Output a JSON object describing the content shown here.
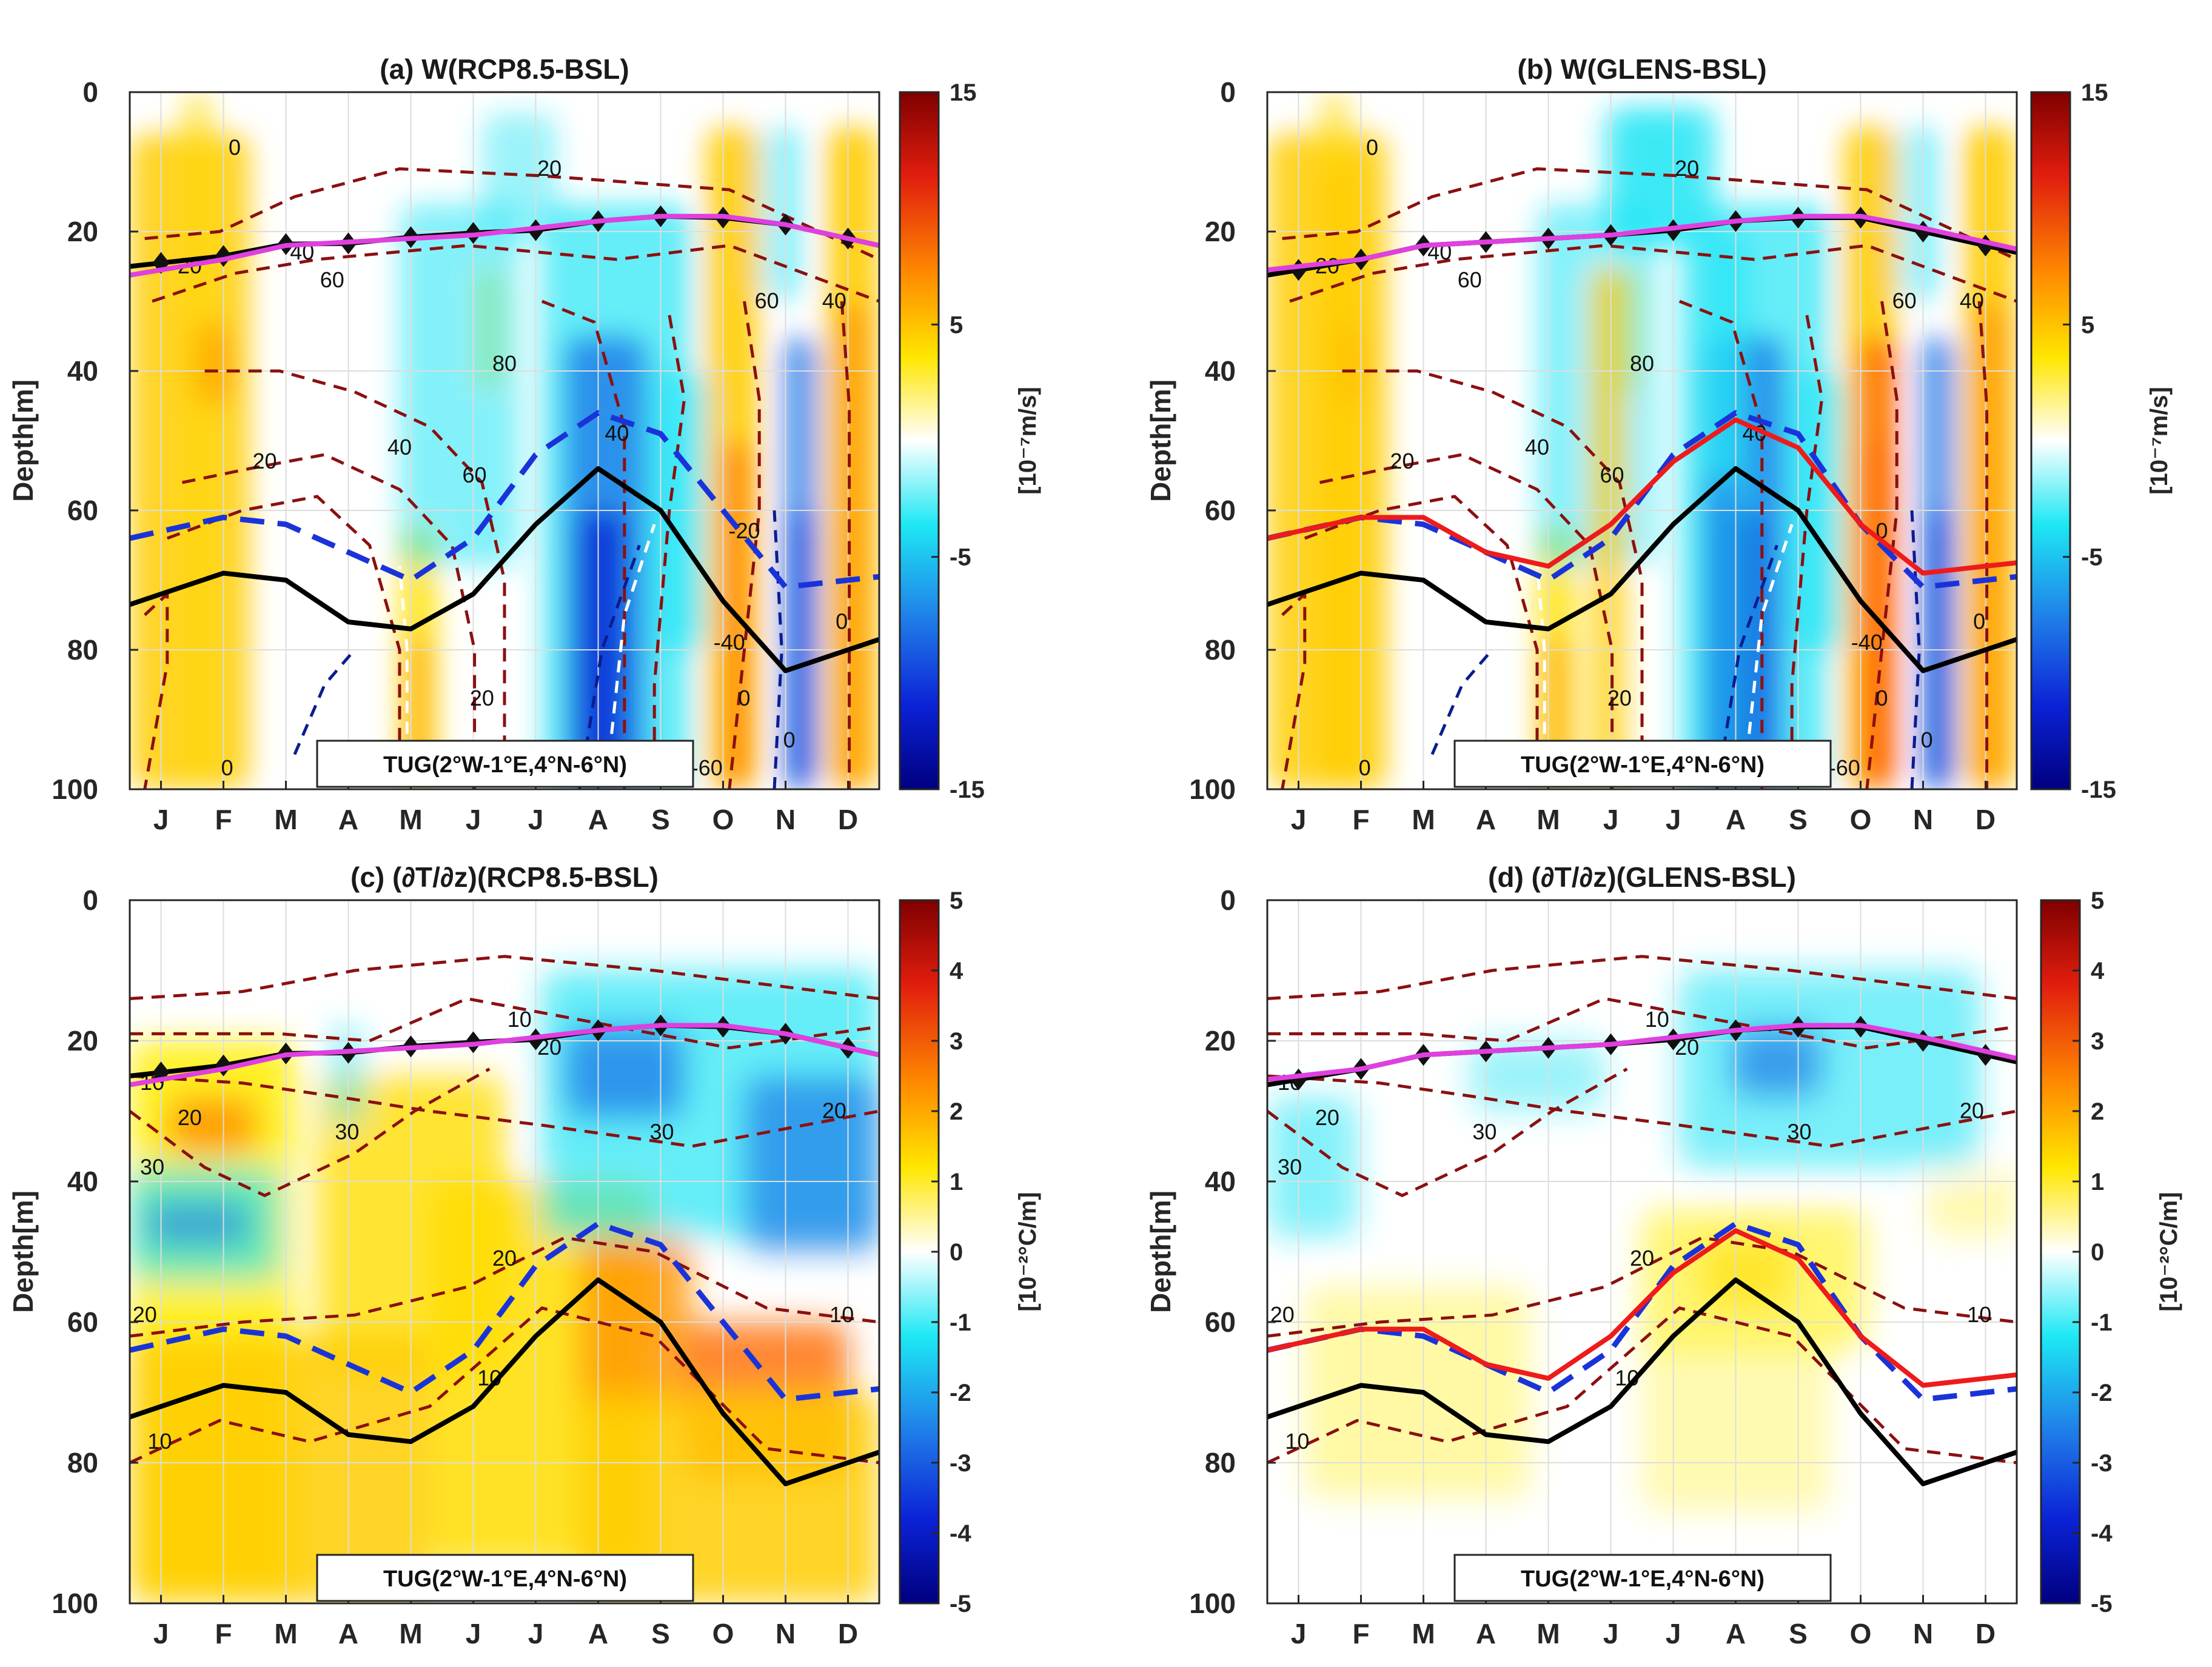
{
  "chart_data": [
    {
      "type": "contour",
      "panel": "a",
      "title": "(a) W(RCP8.5-BSL)",
      "ylabel": "Depth[m]",
      "months": [
        "J",
        "F",
        "M",
        "A",
        "M",
        "J",
        "J",
        "A",
        "S",
        "O",
        "N",
        "D"
      ],
      "yticks": [
        "0",
        "20",
        "40",
        "60",
        "80",
        "100"
      ],
      "ylim": [
        0,
        100
      ],
      "region_label": "TUG(2°W-1°E,4°N-6°N)",
      "colorbar": {
        "ticks": [
          "15",
          "5",
          "-5",
          "-15"
        ],
        "values": [
          15,
          5,
          -5,
          -15
        ],
        "label": "[10⁻⁷m/s]",
        "range": [
          -15,
          15
        ]
      },
      "shading_pattern": "w",
      "contour_labels": [
        "0",
        "20",
        "40",
        "60",
        "80",
        "60",
        "40",
        "20",
        "60",
        "40",
        "20",
        "-20",
        "0",
        "-40",
        "-60",
        "0",
        "-40",
        "0",
        "40",
        "20",
        "0"
      ],
      "series": [
        {
          "name": "mld_black_diamond",
          "color": "#000000",
          "style": "solid-marker",
          "depth": [
            24.5,
            23.5,
            21.8,
            21.7,
            20.8,
            20.2,
            19.8,
            18.5,
            17.8,
            18,
            19,
            21
          ]
        },
        {
          "name": "mld_magenta",
          "color": "#e040e0",
          "style": "solid",
          "depth": [
            25.5,
            24,
            22,
            21.5,
            21,
            20.5,
            19.5,
            18.5,
            17.8,
            17.8,
            19,
            21
          ]
        },
        {
          "name": "thermocline_black",
          "color": "#000000",
          "style": "solid",
          "depth": [
            72,
            69,
            70,
            76,
            77,
            72,
            62,
            54,
            60,
            73,
            83,
            80
          ]
        },
        {
          "name": "thermocline_blue_dashed",
          "color": "#1a33d9",
          "style": "dashed",
          "depth": [
            63,
            61,
            62,
            66,
            70,
            64,
            52,
            46,
            49,
            60,
            71,
            70
          ]
        }
      ]
    },
    {
      "type": "contour",
      "panel": "b",
      "title": "(b) W(GLENS-BSL)",
      "ylabel": "Depth[m]",
      "months": [
        "J",
        "F",
        "M",
        "A",
        "M",
        "J",
        "J",
        "A",
        "S",
        "O",
        "N",
        "D"
      ],
      "yticks": [
        "0",
        "20",
        "40",
        "60",
        "80",
        "100"
      ],
      "ylim": [
        0,
        100
      ],
      "region_label": "TUG(2°W-1°E,4°N-6°N)",
      "colorbar": {
        "ticks": [
          "15",
          "5",
          "-5",
          "-15"
        ],
        "values": [
          15,
          5,
          -5,
          -15
        ],
        "label": "[10⁻⁷m/s]",
        "range": [
          -15,
          15
        ]
      },
      "shading_pattern": "w",
      "contour_labels": [
        "0",
        "20",
        "40",
        "60",
        "80",
        "60",
        "40",
        "20",
        "60",
        "40",
        "20",
        "0",
        "0",
        "-40",
        "-60",
        "0",
        "-40",
        "0",
        "40",
        "20",
        "0"
      ],
      "series": [
        {
          "name": "mld_black_diamond",
          "color": "#000000",
          "style": "solid-marker",
          "depth": [
            25.5,
            24,
            22,
            21.5,
            21,
            20.5,
            19.8,
            18.5,
            18,
            18,
            20,
            22
          ]
        },
        {
          "name": "mld_magenta",
          "color": "#e040e0",
          "style": "solid",
          "depth": [
            25,
            24,
            22,
            21.5,
            21,
            20.5,
            19.5,
            18.5,
            17.8,
            17.8,
            19.5,
            21.5
          ]
        },
        {
          "name": "thermocline_black",
          "color": "#000000",
          "style": "solid",
          "depth": [
            72,
            69,
            70,
            76,
            77,
            72,
            62,
            54,
            60,
            73,
            83,
            80
          ]
        },
        {
          "name": "thermocline_blue_dashed",
          "color": "#1a33d9",
          "style": "dashed",
          "depth": [
            63,
            61,
            62,
            66,
            70,
            64,
            52,
            46,
            49,
            62,
            71,
            70
          ]
        },
        {
          "name": "thermocline_red",
          "color": "#ee1b1b",
          "style": "solid",
          "depth": [
            63,
            61,
            61,
            66,
            68,
            62,
            53,
            47,
            51,
            62,
            69,
            68
          ]
        }
      ]
    },
    {
      "type": "contour",
      "panel": "c",
      "title": "(c) (∂T/∂z)(RCP8.5-BSL)",
      "ylabel": "Depth[m]",
      "months": [
        "J",
        "F",
        "M",
        "A",
        "M",
        "J",
        "J",
        "A",
        "S",
        "O",
        "N",
        "D"
      ],
      "yticks": [
        "0",
        "20",
        "40",
        "60",
        "80",
        "100"
      ],
      "ylim": [
        0,
        100
      ],
      "region_label": "TUG(2°W-1°E,4°N-6°N)",
      "colorbar": {
        "ticks": [
          "5",
          "4",
          "3",
          "2",
          "1",
          "0",
          "-1",
          "-2",
          "-3",
          "-4",
          "-5"
        ],
        "values": [
          5,
          4,
          3,
          2,
          1,
          0,
          -1,
          -2,
          -3,
          -4,
          -5
        ],
        "label": "[10⁻²°C/m]",
        "range": [
          -5,
          5
        ]
      },
      "shading_pattern": "dtdz_rcp",
      "contour_labels": [
        "10",
        "20",
        "30",
        "10",
        "20",
        "30",
        "30",
        "20",
        "20",
        "20",
        "10",
        "10",
        "10"
      ],
      "series": [
        {
          "name": "mld_black_diamond",
          "color": "#000000",
          "style": "solid-marker",
          "depth": [
            24.5,
            23.5,
            21.8,
            21.7,
            20.8,
            20.2,
            19.8,
            18.5,
            17.8,
            18,
            19,
            21
          ]
        },
        {
          "name": "mld_magenta",
          "color": "#e040e0",
          "style": "solid",
          "depth": [
            25.5,
            24,
            22,
            21.5,
            21,
            20.5,
            19.5,
            18.5,
            17.8,
            17.8,
            19,
            21
          ]
        },
        {
          "name": "thermocline_black",
          "color": "#000000",
          "style": "solid",
          "depth": [
            72,
            69,
            70,
            76,
            77,
            72,
            62,
            54,
            60,
            73,
            83,
            80
          ]
        },
        {
          "name": "thermocline_blue_dashed",
          "color": "#1a33d9",
          "style": "dashed",
          "depth": [
            63,
            61,
            62,
            66,
            70,
            64,
            52,
            46,
            49,
            60,
            71,
            70
          ]
        }
      ]
    },
    {
      "type": "contour",
      "panel": "d",
      "title": "(d) (∂T/∂z)(GLENS-BSL)",
      "ylabel": "Depth[m]",
      "months": [
        "J",
        "F",
        "M",
        "A",
        "M",
        "J",
        "J",
        "A",
        "S",
        "O",
        "N",
        "D"
      ],
      "yticks": [
        "0",
        "20",
        "40",
        "60",
        "80",
        "100"
      ],
      "ylim": [
        0,
        100
      ],
      "region_label": "TUG(2°W-1°E,4°N-6°N)",
      "colorbar": {
        "ticks": [
          "5",
          "4",
          "3",
          "2",
          "1",
          "0",
          "-1",
          "-2",
          "-3",
          "-4",
          "-5"
        ],
        "values": [
          5,
          4,
          3,
          2,
          1,
          0,
          -1,
          -2,
          -3,
          -4,
          -5
        ],
        "label": "[10⁻²°C/m]",
        "range": [
          -5,
          5
        ]
      },
      "shading_pattern": "dtdz_glens",
      "contour_labels": [
        "10",
        "20",
        "30",
        "10",
        "20",
        "30",
        "30",
        "20",
        "20",
        "20",
        "10",
        "10",
        "10"
      ],
      "series": [
        {
          "name": "mld_black_diamond",
          "color": "#000000",
          "style": "solid-marker",
          "depth": [
            25.5,
            24,
            22,
            21.5,
            21,
            20.5,
            19.8,
            18.5,
            18,
            18,
            20,
            22
          ]
        },
        {
          "name": "mld_magenta",
          "color": "#e040e0",
          "style": "solid",
          "depth": [
            25,
            24,
            22,
            21.5,
            21,
            20.5,
            19.5,
            18.5,
            17.8,
            17.8,
            19.5,
            21.5
          ]
        },
        {
          "name": "thermocline_black",
          "color": "#000000",
          "style": "solid",
          "depth": [
            72,
            69,
            70,
            76,
            77,
            72,
            62,
            54,
            60,
            73,
            83,
            80
          ]
        },
        {
          "name": "thermocline_blue_dashed",
          "color": "#1a33d9",
          "style": "dashed",
          "depth": [
            63,
            61,
            62,
            66,
            70,
            64,
            52,
            46,
            49,
            62,
            71,
            70
          ]
        },
        {
          "name": "thermocline_red",
          "color": "#ee1b1b",
          "style": "solid",
          "depth": [
            63,
            61,
            61,
            66,
            68,
            62,
            53,
            47,
            51,
            62,
            69,
            68
          ]
        }
      ]
    }
  ]
}
